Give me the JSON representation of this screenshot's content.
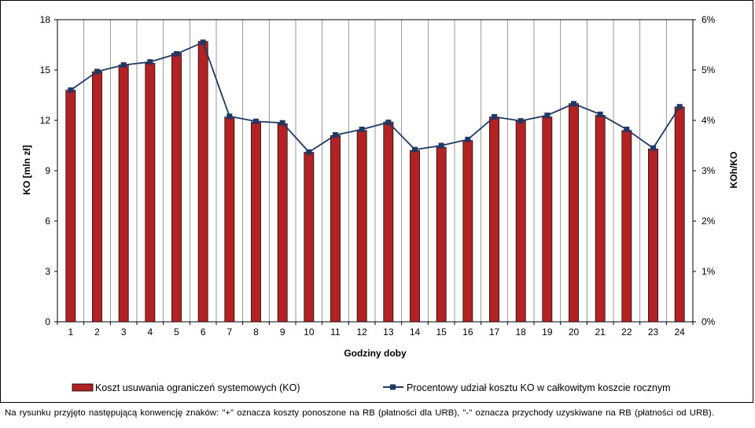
{
  "chart_data": {
    "type": "bar",
    "x": [
      "1",
      "2",
      "3",
      "4",
      "5",
      "6",
      "7",
      "8",
      "9",
      "10",
      "11",
      "12",
      "13",
      "14",
      "15",
      "16",
      "17",
      "18",
      "19",
      "20",
      "21",
      "22",
      "23",
      "24"
    ],
    "series": [
      {
        "name": "Koszt usuwania ograniczeń systemowych (KO)",
        "type": "bar",
        "axis": "left",
        "color": "#b22222",
        "values": [
          13.8,
          14.9,
          15.3,
          15.4,
          16.0,
          16.7,
          12.2,
          11.9,
          11.8,
          10.1,
          11.1,
          11.4,
          11.9,
          10.2,
          10.4,
          10.8,
          12.2,
          12.0,
          12.2,
          13.0,
          12.3,
          11.4,
          10.3,
          12.8
        ]
      },
      {
        "name": "Procentowy udział kosztu KO w całkowitym koszcie rocznym",
        "type": "line",
        "axis": "right",
        "color": "#1f3864",
        "values": [
          4.6,
          4.97,
          5.1,
          5.16,
          5.32,
          5.55,
          4.08,
          3.98,
          3.95,
          3.37,
          3.71,
          3.82,
          3.96,
          3.42,
          3.5,
          3.62,
          4.07,
          3.99,
          4.1,
          4.33,
          4.12,
          3.82,
          3.45,
          4.27
        ]
      }
    ],
    "y_left": {
      "label": "KO [mln zł]",
      "min": 0,
      "max": 18,
      "ticks": [
        "0",
        "3",
        "6",
        "9",
        "12",
        "15",
        "18"
      ]
    },
    "y_right": {
      "label": "KOh/KO",
      "min": 0,
      "max": 6,
      "ticks": [
        "0%",
        "1%",
        "2%",
        "3%",
        "4%",
        "5%",
        "6%"
      ]
    },
    "xlabel": "Godziny doby",
    "grid": "vertical",
    "legend_position": "bottom"
  },
  "legend": {
    "bar_label": "Koszt usuwania ograniczeń systemowych (KO)",
    "line_label": "Procentowy udział kosztu KO w całkowitym koszcie rocznym"
  },
  "footnote": "Na rysunku przyjęto następującą konwencję znaków: \"+\" oznacza koszty ponoszone na RB (płatności dla URB), \"-\" oznacza przychody uzyskiwane na RB (płatności od URB)."
}
